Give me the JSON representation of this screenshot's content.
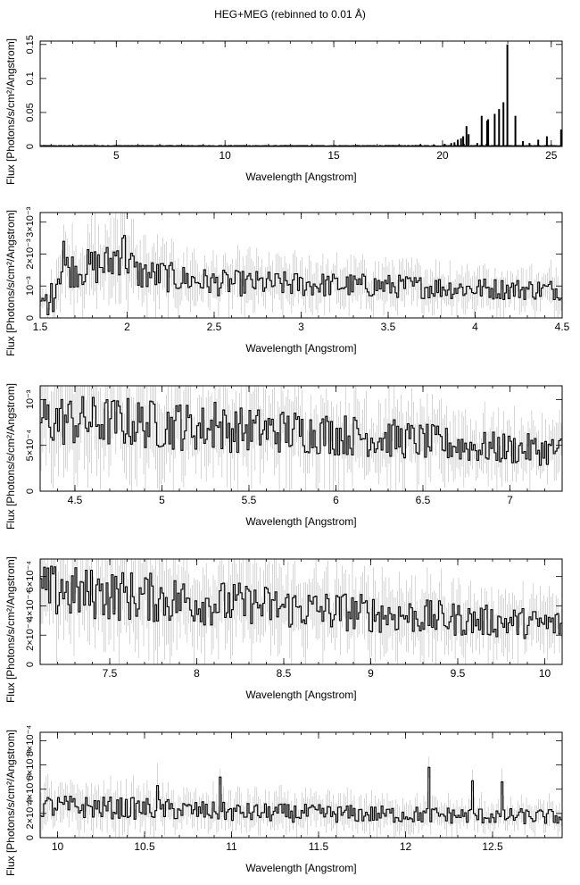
{
  "title": "HEG+MEG (rebinned to 0.01 Å)",
  "chart_data": [
    {
      "type": "line",
      "style": "histogram-step with error bars",
      "xlabel": "Wavelength [Angstrom]",
      "ylabel": "Flux [Photons/s/cm²/Angstrom]",
      "xlim": [
        1.5,
        25.5
      ],
      "ylim": [
        0,
        0.155
      ],
      "xticks": [
        {
          "v": 5,
          "label": "5"
        },
        {
          "v": 10,
          "label": "10"
        },
        {
          "v": 15,
          "label": "15"
        },
        {
          "v": 20,
          "label": "20"
        },
        {
          "v": 25,
          "label": "25"
        }
      ],
      "yticks": [
        {
          "v": 0,
          "label": "0"
        },
        {
          "v": 0.05,
          "label": "0.05"
        },
        {
          "v": 0.1,
          "label": "0.1"
        },
        {
          "v": 0.15,
          "label": "0.15"
        }
      ],
      "baseline": 0.001,
      "lines": [
        [
          18.6,
          0.002
        ],
        [
          18.97,
          0.003
        ],
        [
          19.6,
          0.003
        ],
        [
          20.1,
          0.004
        ],
        [
          20.4,
          0.005
        ],
        [
          20.55,
          0.006
        ],
        [
          20.7,
          0.01
        ],
        [
          20.85,
          0.012
        ],
        [
          20.95,
          0.015
        ],
        [
          21.1,
          0.03
        ],
        [
          21.2,
          0.018
        ],
        [
          21.6,
          0.005
        ],
        [
          21.8,
          0.045
        ],
        [
          22.05,
          0.038
        ],
        [
          22.1,
          0.04
        ],
        [
          22.4,
          0.048
        ],
        [
          22.6,
          0.055
        ],
        [
          22.8,
          0.065
        ],
        [
          22.98,
          0.15
        ],
        [
          23.35,
          0.045
        ],
        [
          23.7,
          0.008
        ],
        [
          24.0,
          0.005
        ],
        [
          24.4,
          0.01
        ],
        [
          24.8,
          0.015
        ],
        [
          25.45,
          0.025
        ]
      ]
    },
    {
      "type": "line",
      "style": "histogram-step with error bars",
      "xlabel": "Wavelength [Angstrom]",
      "ylabel": "Flux [Photons/s/cm²/Angstrom]",
      "xlim": [
        1.5,
        4.5
      ],
      "ylim": [
        0,
        0.0033
      ],
      "xticks": [
        {
          "v": 1.5,
          "label": "1.5"
        },
        {
          "v": 2,
          "label": "2"
        },
        {
          "v": 2.5,
          "label": "2.5"
        },
        {
          "v": 3,
          "label": "3"
        },
        {
          "v": 3.5,
          "label": "3.5"
        },
        {
          "v": 4,
          "label": "4"
        },
        {
          "v": 4.5,
          "label": "4.5"
        }
      ],
      "yticks": [
        {
          "v": 0,
          "label": "0"
        },
        {
          "v": 0.001,
          "label": "10⁻³"
        },
        {
          "v": 0.002,
          "label": "2×10⁻³"
        },
        {
          "v": 0.003,
          "label": "3×10⁻³"
        }
      ],
      "profile": [
        [
          1.5,
          0.0004
        ],
        [
          1.58,
          0.0009
        ],
        [
          1.62,
          0.0016
        ],
        [
          1.7,
          0.0015
        ],
        [
          1.8,
          0.0016
        ],
        [
          1.9,
          0.0017
        ],
        [
          1.97,
          0.0022
        ],
        [
          2.05,
          0.0014
        ],
        [
          2.2,
          0.0013
        ],
        [
          2.5,
          0.0011
        ],
        [
          3.0,
          0.00105
        ],
        [
          3.5,
          0.001
        ],
        [
          4.0,
          0.00092
        ],
        [
          4.5,
          0.00088
        ]
      ],
      "spikes": [
        [
          1.63,
          0.0024
        ],
        [
          1.97,
          0.0025
        ],
        [
          2.2,
          0.0017
        ],
        [
          1.54,
          0.0001
        ],
        [
          1.57,
          0.0002
        ]
      ]
    },
    {
      "type": "line",
      "style": "histogram-step with error bars",
      "xlabel": "Wavelength [Angstrom]",
      "ylabel": "Flux [Photons/s/cm²/Angstrom]",
      "xlim": [
        4.3,
        7.3
      ],
      "ylim": [
        0,
        0.00115
      ],
      "xticks": [
        {
          "v": 4.5,
          "label": "4.5"
        },
        {
          "v": 5,
          "label": "5"
        },
        {
          "v": 5.5,
          "label": "5.5"
        },
        {
          "v": 6,
          "label": "6"
        },
        {
          "v": 6.5,
          "label": "6.5"
        },
        {
          "v": 7,
          "label": "7"
        }
      ],
      "yticks": [
        {
          "v": 0,
          "label": "0"
        },
        {
          "v": 0.0005,
          "label": "5×10⁻⁴"
        },
        {
          "v": 0.001,
          "label": "10⁻³"
        }
      ],
      "profile": [
        [
          4.3,
          0.00078
        ],
        [
          4.8,
          0.00075
        ],
        [
          5.3,
          0.00068
        ],
        [
          5.8,
          0.00065
        ],
        [
          6.3,
          0.00058
        ],
        [
          6.8,
          0.00048
        ],
        [
          7.3,
          0.00044
        ]
      ],
      "spikes": [
        [
          4.42,
          0.001
        ],
        [
          4.95,
          0.00095
        ],
        [
          5.1,
          0.00094
        ],
        [
          5.3,
          0.00097
        ]
      ]
    },
    {
      "type": "line",
      "style": "histogram-step with error bars",
      "xlabel": "Wavelength [Angstrom]",
      "ylabel": "Flux [Photons/s/cm²/Angstrom]",
      "xlim": [
        7.1,
        10.1
      ],
      "ylim": [
        0,
        0.00072
      ],
      "xticks": [
        {
          "v": 7.5,
          "label": "7.5"
        },
        {
          "v": 8,
          "label": "8"
        },
        {
          "v": 8.5,
          "label": "8.5"
        },
        {
          "v": 9,
          "label": "9"
        },
        {
          "v": 9.5,
          "label": "9.5"
        },
        {
          "v": 10,
          "label": "10"
        }
      ],
      "yticks": [
        {
          "v": 0,
          "label": "0"
        },
        {
          "v": 0.0002,
          "label": "2×10⁻⁴"
        },
        {
          "v": 0.0004,
          "label": "4×10⁻⁴"
        },
        {
          "v": 0.0006,
          "label": "6×10⁻⁴"
        }
      ],
      "profile": [
        [
          7.1,
          0.0005
        ],
        [
          7.6,
          0.00047
        ],
        [
          8.1,
          0.00042
        ],
        [
          8.6,
          0.00038
        ],
        [
          9.1,
          0.00034
        ],
        [
          9.6,
          0.0003
        ],
        [
          10.1,
          0.00027
        ]
      ],
      "spikes": [
        [
          7.22,
          0.00058
        ],
        [
          7.45,
          0.00055
        ],
        [
          8.3,
          0.0005
        ],
        [
          8.85,
          0.00048
        ]
      ]
    },
    {
      "type": "line",
      "style": "histogram-step with error bars",
      "xlabel": "Wavelength [Angstrom]",
      "ylabel": "Flux [Photons/s/cm²/Angstrom]",
      "xlim": [
        9.9,
        12.9
      ],
      "ylim": [
        0,
        0.00087
      ],
      "xticks": [
        {
          "v": 10,
          "label": "10"
        },
        {
          "v": 10.5,
          "label": "10.5"
        },
        {
          "v": 11,
          "label": "11"
        },
        {
          "v": 11.5,
          "label": "11.5"
        },
        {
          "v": 12,
          "label": "12"
        },
        {
          "v": 12.5,
          "label": "12.5"
        }
      ],
      "yticks": [
        {
          "v": 0,
          "label": "0"
        },
        {
          "v": 0.0002,
          "label": "2×10⁻⁴"
        },
        {
          "v": 0.0004,
          "label": "4×10⁻⁴"
        },
        {
          "v": 0.0006,
          "label": "6×10⁻⁴"
        },
        {
          "v": 0.0008,
          "label": "8×10⁻⁴"
        }
      ],
      "profile": [
        [
          9.9,
          0.00026
        ],
        [
          10.5,
          0.00024
        ],
        [
          11.0,
          0.00021
        ],
        [
          11.5,
          0.0002
        ],
        [
          12.0,
          0.00019
        ],
        [
          12.5,
          0.00018
        ],
        [
          12.9,
          0.00017
        ]
      ],
      "spikes": [
        [
          10.57,
          0.00043
        ],
        [
          10.93,
          0.0005
        ],
        [
          12.13,
          0.00058
        ],
        [
          12.38,
          0.00047
        ],
        [
          12.55,
          0.00046
        ]
      ]
    }
  ]
}
